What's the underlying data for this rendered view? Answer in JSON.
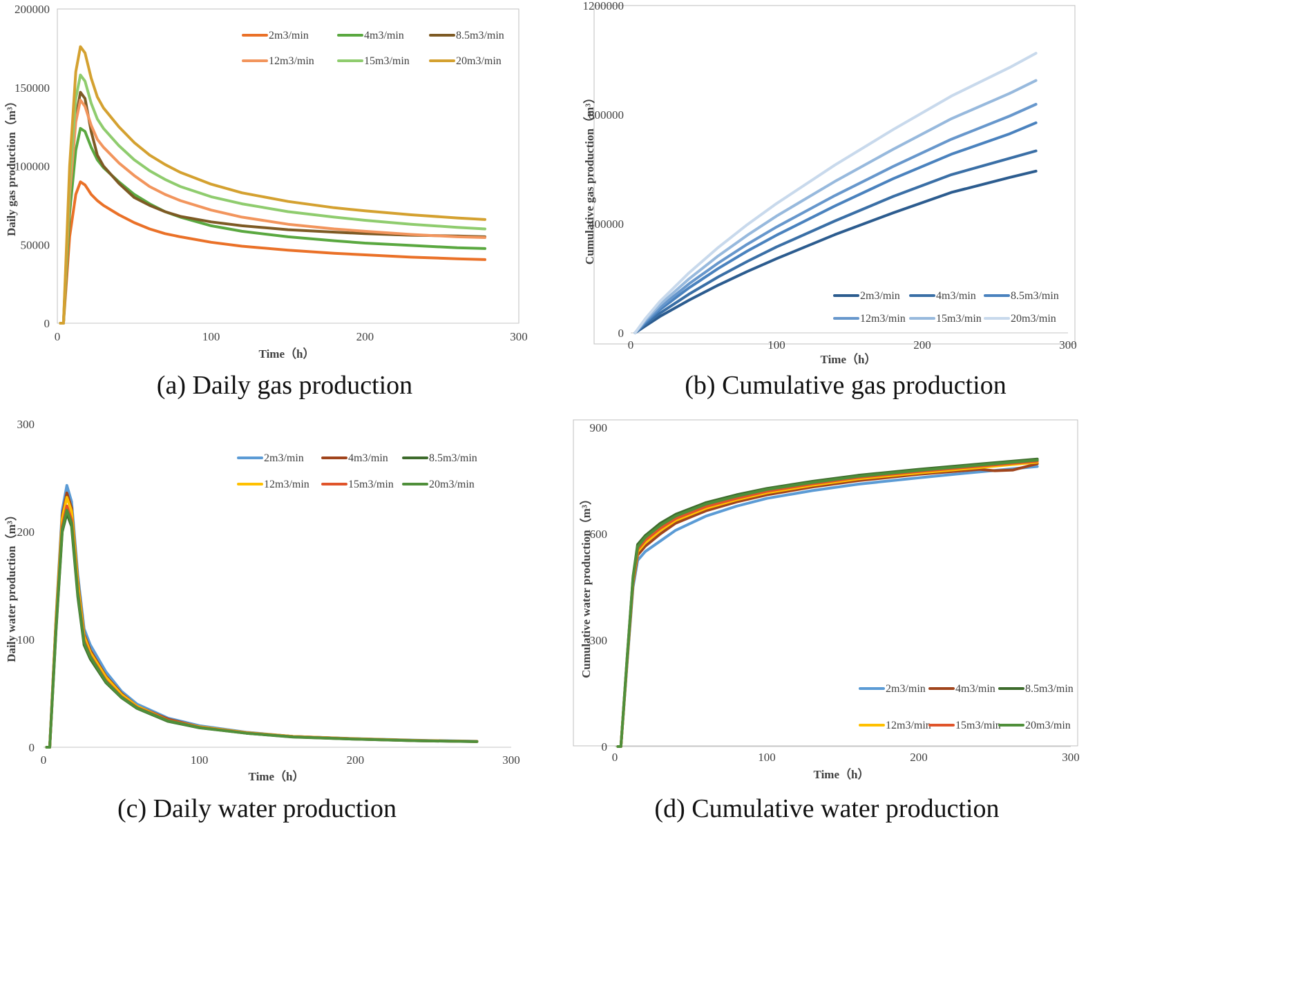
{
  "chart_data": [
    {
      "id": "a",
      "type": "line",
      "caption": "(a) Daily gas production",
      "xlabel": "Time（h）",
      "ylabel": "Daily gas production（m³）",
      "xlim": [
        0,
        300
      ],
      "ylim": [
        0,
        200000
      ],
      "xticks": [
        "0",
        "100",
        "200",
        "300"
      ],
      "yticks": [
        "0",
        "50000",
        "100000",
        "150000",
        "200000"
      ],
      "legend_columns": 3,
      "series": [
        {
          "name": "2m3/min",
          "color": "#ea7128",
          "x": [
            2,
            4,
            8,
            12,
            15,
            18,
            22,
            26,
            30,
            40,
            50,
            60,
            70,
            80,
            100,
            120,
            150,
            180,
            200,
            230,
            260,
            278
          ],
          "y": [
            0,
            0,
            55000,
            82000,
            90000,
            88000,
            82000,
            78000,
            75000,
            69000,
            64000,
            60000,
            57000,
            55000,
            51500,
            49000,
            46500,
            44500,
            43500,
            42000,
            41000,
            40500
          ]
        },
        {
          "name": "4m3/min",
          "color": "#5aa840",
          "x": [
            2,
            4,
            8,
            12,
            15,
            18,
            22,
            26,
            30,
            40,
            50,
            60,
            70,
            80,
            100,
            120,
            150,
            180,
            200,
            230,
            260,
            278
          ],
          "y": [
            0,
            0,
            70000,
            110000,
            124000,
            122000,
            112000,
            104000,
            99000,
            90000,
            82000,
            76000,
            71000,
            67500,
            62000,
            58500,
            55000,
            52500,
            51000,
            49500,
            48000,
            47500
          ]
        },
        {
          "name": "8.5m3/min",
          "color": "#7d5a24",
          "x": [
            2,
            4,
            8,
            12,
            15,
            18,
            22,
            26,
            30,
            40,
            50,
            60,
            70,
            80,
            100,
            120,
            150,
            180,
            200,
            230,
            260,
            278
          ],
          "y": [
            0,
            0,
            82000,
            130000,
            147000,
            143000,
            122000,
            107000,
            100000,
            89000,
            80000,
            75000,
            71000,
            68000,
            64500,
            62000,
            59500,
            58000,
            57000,
            56000,
            55500,
            55000
          ]
        },
        {
          "name": "12m3/min",
          "color": "#f2955d",
          "x": [
            2,
            4,
            8,
            12,
            15,
            18,
            22,
            26,
            30,
            40,
            50,
            60,
            70,
            80,
            100,
            120,
            150,
            180,
            200,
            230,
            260,
            278
          ],
          "y": [
            0,
            0,
            82000,
            128000,
            142000,
            138000,
            126000,
            117000,
            112000,
            102000,
            94000,
            87000,
            82000,
            78000,
            72000,
            67500,
            63000,
            60000,
            58500,
            56500,
            55000,
            54500
          ]
        },
        {
          "name": "15m3/min",
          "color": "#8fcc6e",
          "x": [
            2,
            4,
            8,
            12,
            15,
            18,
            22,
            26,
            30,
            40,
            50,
            60,
            70,
            80,
            100,
            120,
            150,
            180,
            200,
            230,
            260,
            278
          ],
          "y": [
            0,
            0,
            90000,
            143000,
            158000,
            154000,
            140000,
            130000,
            124000,
            113000,
            104000,
            97000,
            91500,
            87000,
            80500,
            76000,
            71000,
            67500,
            65500,
            63000,
            61000,
            60000
          ]
        },
        {
          "name": "20m3/min",
          "color": "#d4a130",
          "x": [
            2,
            4,
            8,
            12,
            15,
            18,
            22,
            26,
            30,
            40,
            50,
            60,
            70,
            80,
            100,
            120,
            150,
            180,
            200,
            230,
            260,
            278
          ],
          "y": [
            0,
            0,
            100000,
            160000,
            176000,
            172000,
            156000,
            144000,
            137000,
            125000,
            115000,
            107000,
            101000,
            96000,
            88500,
            83000,
            77500,
            73500,
            71500,
            69000,
            67000,
            66000
          ]
        }
      ]
    },
    {
      "id": "b",
      "type": "line",
      "caption": "(b) Cumulative gas production",
      "xlabel": "Time（h）",
      "ylabel": "Cumulative gas production（m³）",
      "xlim": [
        0,
        300
      ],
      "ylim": [
        0,
        1200000
      ],
      "xticks": [
        "0",
        "100",
        "200",
        "300"
      ],
      "yticks": [
        "0",
        "400000",
        "800000",
        "1200000"
      ],
      "legend_columns": 3,
      "series": [
        {
          "name": "2m3/min",
          "color": "#2c5c8f",
          "x": [
            3,
            10,
            20,
            40,
            60,
            80,
            100,
            140,
            180,
            220,
            260,
            278
          ],
          "y": [
            0,
            25000,
            60000,
            120000,
            175000,
            225000,
            272000,
            360000,
            440000,
            515000,
            570000,
            593000
          ]
        },
        {
          "name": "4m3/min",
          "color": "#3a6fa6",
          "x": [
            3,
            10,
            20,
            40,
            60,
            80,
            100,
            140,
            180,
            220,
            260,
            278
          ],
          "y": [
            0,
            32000,
            72000,
            142000,
            205000,
            262000,
            315000,
            410000,
            500000,
            580000,
            640000,
            667000
          ]
        },
        {
          "name": "8.5m3/min",
          "color": "#4a82be",
          "x": [
            3,
            10,
            20,
            40,
            60,
            80,
            100,
            140,
            180,
            220,
            260,
            278
          ],
          "y": [
            0,
            38000,
            85000,
            165000,
            236000,
            300000,
            358000,
            465000,
            565000,
            655000,
            730000,
            770000
          ]
        },
        {
          "name": "12m3/min",
          "color": "#6797cc",
          "x": [
            3,
            10,
            20,
            40,
            60,
            80,
            100,
            140,
            180,
            220,
            260,
            278
          ],
          "y": [
            0,
            42000,
            93000,
            180000,
            256000,
            325000,
            388000,
            503000,
            610000,
            710000,
            795000,
            838000
          ]
        },
        {
          "name": "15m3/min",
          "color": "#97b9dd",
          "x": [
            3,
            10,
            20,
            40,
            60,
            80,
            100,
            140,
            180,
            220,
            260,
            278
          ],
          "y": [
            0,
            47000,
            103000,
            198000,
            282000,
            358000,
            428000,
            555000,
            673000,
            785000,
            878000,
            925000
          ]
        },
        {
          "name": "20m3/min",
          "color": "#c8d9ec",
          "x": [
            3,
            10,
            20,
            40,
            60,
            80,
            100,
            140,
            180,
            220,
            260,
            278
          ],
          "y": [
            0,
            52000,
            115000,
            220000,
            313000,
            397000,
            474000,
            615000,
            745000,
            868000,
            973000,
            1025000
          ]
        }
      ]
    },
    {
      "id": "c",
      "type": "line",
      "caption": "(c) Daily water production",
      "xlabel": "Time（h）",
      "ylabel": "Daily water production（m³）",
      "xlim": [
        0,
        300
      ],
      "ylim": [
        0,
        300
      ],
      "xticks": [
        "0",
        "100",
        "200",
        "300"
      ],
      "yticks": [
        "0",
        "100",
        "200",
        "300"
      ],
      "legend_columns": 3,
      "series": [
        {
          "name": "2m3/min",
          "color": "#5b9bd5",
          "x": [
            2,
            4,
            8,
            12,
            15,
            18,
            22,
            26,
            30,
            40,
            50,
            60,
            80,
            100,
            130,
            160,
            200,
            240,
            278
          ],
          "y": [
            0,
            0,
            120,
            220,
            243,
            228,
            160,
            110,
            95,
            70,
            52,
            40,
            27,
            20,
            14,
            10,
            8,
            6.5,
            5.5
          ]
        },
        {
          "name": "4m3/min",
          "color": "#a0441c",
          "x": [
            2,
            4,
            8,
            12,
            15,
            18,
            22,
            26,
            30,
            40,
            50,
            60,
            80,
            100,
            130,
            160,
            200,
            240,
            278
          ],
          "y": [
            0,
            0,
            118,
            215,
            236,
            222,
            155,
            105,
            90,
            66,
            50,
            38,
            26,
            19,
            13.5,
            10,
            7.8,
            6.3,
            5.4
          ]
        },
        {
          "name": "8.5m3/min",
          "color": "#3d6b2c",
          "x": [
            2,
            4,
            8,
            12,
            15,
            18,
            22,
            26,
            30,
            40,
            50,
            60,
            80,
            100,
            130,
            160,
            200,
            240,
            278
          ],
          "y": [
            0,
            0,
            108,
            200,
            217,
            205,
            140,
            95,
            82,
            60,
            46,
            36,
            24,
            18,
            13,
            9.5,
            7.5,
            6,
            5.2
          ]
        },
        {
          "name": "12m3/min",
          "color": "#ffc000",
          "x": [
            2,
            4,
            8,
            12,
            15,
            18,
            22,
            26,
            30,
            40,
            50,
            60,
            80,
            100,
            130,
            160,
            200,
            240,
            278
          ],
          "y": [
            0,
            0,
            117,
            212,
            232,
            219,
            152,
            103,
            88,
            65,
            49,
            38,
            25,
            19,
            13.5,
            10,
            7.8,
            6.3,
            5.4
          ]
        },
        {
          "name": "15m3/min",
          "color": "#e0542a",
          "x": [
            2,
            4,
            8,
            12,
            15,
            18,
            22,
            26,
            30,
            40,
            50,
            60,
            80,
            100,
            130,
            160,
            200,
            240,
            278
          ],
          "y": [
            0,
            0,
            112,
            205,
            224,
            211,
            145,
            99,
            85,
            62,
            47,
            37,
            25,
            18.5,
            13.2,
            9.8,
            7.6,
            6.1,
            5.3
          ]
        },
        {
          "name": "20m3/min",
          "color": "#4f8f3a",
          "x": [
            2,
            4,
            8,
            12,
            15,
            18,
            22,
            26,
            30,
            40,
            50,
            60,
            80,
            100,
            130,
            160,
            200,
            240,
            278
          ],
          "y": [
            0,
            0,
            110,
            202,
            220,
            208,
            143,
            97,
            84,
            61,
            46.5,
            36.5,
            24.5,
            18.2,
            13,
            9.6,
            7.5,
            6,
            5.2
          ]
        }
      ]
    },
    {
      "id": "d",
      "type": "line",
      "caption": "(d) Cumulative water production",
      "xlabel": "Time（h）",
      "ylabel": "Cumulative water production（m³）",
      "xlim": [
        0,
        300
      ],
      "ylim": [
        0,
        900
      ],
      "xticks": [
        "0",
        "100",
        "200",
        "300"
      ],
      "yticks": [
        "0",
        "300",
        "600",
        "900"
      ],
      "legend_columns": 3,
      "series": [
        {
          "name": "2m3/min",
          "color": "#5b9bd5",
          "x": [
            2,
            4,
            8,
            12,
            15,
            20,
            30,
            40,
            60,
            80,
            100,
            130,
            160,
            200,
            240,
            278
          ],
          "y": [
            0,
            0,
            230,
            450,
            525,
            550,
            580,
            610,
            650,
            678,
            700,
            722,
            740,
            758,
            775,
            790
          ]
        },
        {
          "name": "4m3/min",
          "color": "#a0441c",
          "x": [
            2,
            4,
            8,
            12,
            15,
            20,
            30,
            40,
            60,
            80,
            100,
            130,
            160,
            200,
            240,
            250,
            262,
            278
          ],
          "y": [
            0,
            0,
            235,
            460,
            540,
            565,
            600,
            630,
            665,
            690,
            710,
            732,
            750,
            768,
            782,
            778,
            780,
            798
          ]
        },
        {
          "name": "8.5m3/min",
          "color": "#3d6b2c",
          "x": [
            2,
            4,
            8,
            12,
            15,
            20,
            30,
            40,
            60,
            80,
            100,
            130,
            160,
            200,
            240,
            278
          ],
          "y": [
            0,
            0,
            245,
            480,
            570,
            595,
            630,
            655,
            688,
            710,
            728,
            748,
            765,
            782,
            797,
            811
          ]
        },
        {
          "name": "12m3/min",
          "color": "#ffc000",
          "x": [
            2,
            4,
            8,
            12,
            15,
            20,
            30,
            40,
            60,
            80,
            100,
            130,
            160,
            200,
            240,
            278
          ],
          "y": [
            0,
            0,
            238,
            465,
            550,
            575,
            610,
            638,
            672,
            696,
            716,
            737,
            755,
            772,
            787,
            802
          ]
        },
        {
          "name": "15m3/min",
          "color": "#e0542a",
          "x": [
            2,
            4,
            8,
            12,
            15,
            20,
            30,
            40,
            60,
            80,
            100,
            130,
            160,
            200,
            240,
            278
          ],
          "y": [
            0,
            0,
            240,
            470,
            556,
            582,
            616,
            643,
            677,
            700,
            720,
            741,
            759,
            776,
            791,
            805
          ]
        },
        {
          "name": "20m3/min",
          "color": "#4f8f3a",
          "x": [
            2,
            4,
            8,
            12,
            15,
            20,
            30,
            40,
            60,
            80,
            100,
            130,
            160,
            200,
            240,
            278
          ],
          "y": [
            0,
            0,
            243,
            476,
            563,
            590,
            624,
            650,
            684,
            706,
            725,
            745,
            762,
            779,
            794,
            808
          ]
        }
      ]
    }
  ]
}
